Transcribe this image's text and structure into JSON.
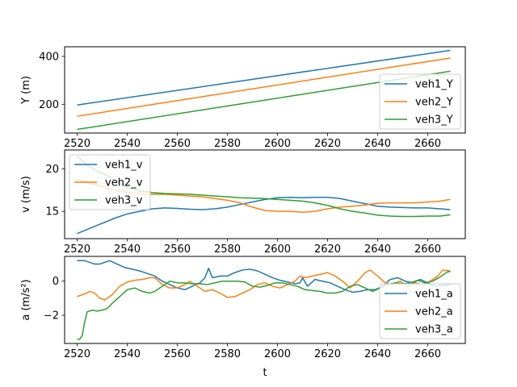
{
  "colors": {
    "blue": "#1f77b4",
    "orange": "#ff7f0e",
    "green": "#2ca02c"
  },
  "chart_data": [
    {
      "type": "line",
      "xlabel": "",
      "ylabel": "Y (m)",
      "xlim": [
        2515,
        2675
      ],
      "ylim": [
        80,
        440
      ],
      "xticks": [
        2520,
        2540,
        2560,
        2580,
        2600,
        2620,
        2640,
        2660
      ],
      "yticks": [
        200,
        400
      ],
      "legend_position": "lower-right",
      "series": [
        {
          "name": "veh1_Y",
          "color": "blue",
          "x": [
            2520,
            2669
          ],
          "y": [
            197,
            425
          ]
        },
        {
          "name": "veh2_Y",
          "color": "orange",
          "x": [
            2520,
            2669
          ],
          "y": [
            150,
            393
          ]
        },
        {
          "name": "veh3_Y",
          "color": "green",
          "x": [
            2520,
            2669
          ],
          "y": [
            95,
            338
          ]
        }
      ]
    },
    {
      "type": "line",
      "xlabel": "",
      "ylabel": "v (m/s)",
      "xlim": [
        2515,
        2675
      ],
      "ylim": [
        11.8,
        22.2
      ],
      "xticks": [
        2520,
        2540,
        2560,
        2580,
        2600,
        2620,
        2640,
        2660
      ],
      "yticks": [
        15,
        20
      ],
      "legend_position": "upper-left",
      "series": [
        {
          "name": "veh1_v",
          "color": "blue",
          "x": [
            2520,
            2525,
            2530,
            2535,
            2540,
            2545,
            2550,
            2555,
            2560,
            2565,
            2570,
            2575,
            2580,
            2585,
            2590,
            2595,
            2600,
            2605,
            2610,
            2615,
            2620,
            2625,
            2630,
            2635,
            2640,
            2645,
            2650,
            2655,
            2660,
            2665,
            2669
          ],
          "y": [
            12.4,
            13.0,
            13.6,
            14.2,
            14.7,
            15.0,
            15.3,
            15.4,
            15.35,
            15.25,
            15.2,
            15.3,
            15.5,
            15.8,
            16.1,
            16.4,
            16.6,
            16.65,
            16.6,
            16.65,
            16.65,
            16.5,
            16.2,
            15.9,
            15.6,
            15.5,
            15.45,
            15.4,
            15.4,
            15.3,
            15.2
          ]
        },
        {
          "name": "veh2_v",
          "color": "orange",
          "x": [
            2520,
            2525,
            2530,
            2535,
            2540,
            2545,
            2550,
            2555,
            2560,
            2565,
            2570,
            2575,
            2580,
            2585,
            2590,
            2595,
            2600,
            2605,
            2610,
            2615,
            2620,
            2625,
            2630,
            2635,
            2640,
            2645,
            2650,
            2655,
            2660,
            2665,
            2669
          ],
          "y": [
            18.7,
            18.3,
            17.9,
            17.5,
            17.2,
            17.05,
            17.0,
            17.0,
            16.9,
            16.8,
            16.7,
            16.5,
            16.3,
            16.0,
            15.5,
            15.1,
            15.0,
            15.0,
            14.9,
            15.0,
            15.3,
            15.5,
            15.6,
            15.75,
            15.95,
            16.0,
            16.0,
            16.0,
            16.1,
            16.2,
            16.4
          ]
        },
        {
          "name": "veh3_v",
          "color": "green",
          "x": [
            2520,
            2524,
            2528,
            2532,
            2536,
            2540,
            2545,
            2550,
            2555,
            2560,
            2565,
            2570,
            2575,
            2580,
            2585,
            2590,
            2595,
            2600,
            2605,
            2610,
            2615,
            2620,
            2625,
            2630,
            2635,
            2640,
            2645,
            2650,
            2655,
            2660,
            2665,
            2669
          ],
          "y": [
            21.5,
            20.4,
            19.7,
            19.2,
            18.5,
            17.8,
            17.4,
            17.2,
            17.1,
            17.05,
            17.0,
            16.9,
            16.8,
            16.7,
            16.6,
            16.55,
            16.5,
            16.4,
            16.3,
            16.2,
            16.0,
            15.7,
            15.3,
            15.0,
            14.8,
            14.55,
            14.45,
            14.4,
            14.4,
            14.45,
            14.45,
            14.6
          ]
        }
      ]
    },
    {
      "type": "line",
      "xlabel": "t",
      "ylabel": "a (m/s²)",
      "xlim": [
        2515,
        2675
      ],
      "ylim": [
        -3.65,
        1.45
      ],
      "xticks": [
        2520,
        2540,
        2560,
        2580,
        2600,
        2620,
        2640,
        2660
      ],
      "yticks": [
        -2,
        0
      ],
      "legend_position": "lower-right",
      "series": [
        {
          "name": "veh1_a",
          "color": "blue",
          "x": [
            2520,
            2523,
            2525,
            2527,
            2529,
            2531,
            2533,
            2536,
            2539,
            2542,
            2545,
            2548,
            2551,
            2554,
            2557,
            2560,
            2563,
            2566,
            2569,
            2571,
            2572.5,
            2574,
            2577,
            2580,
            2583,
            2586,
            2589,
            2592,
            2595,
            2598,
            2601,
            2604,
            2607,
            2609,
            2610,
            2612,
            2615,
            2618,
            2621,
            2624,
            2627,
            2630,
            2633,
            2636,
            2639,
            2642,
            2645,
            2648,
            2651,
            2654,
            2657,
            2660,
            2663,
            2666,
            2669
          ],
          "y": [
            1.2,
            1.2,
            1.1,
            1.0,
            1.0,
            1.1,
            1.2,
            1.0,
            0.8,
            0.7,
            0.6,
            0.45,
            0.3,
            0.0,
            -0.2,
            -0.4,
            -0.5,
            -0.3,
            -0.1,
            0.2,
            0.75,
            0.2,
            0.3,
            0.3,
            0.5,
            0.65,
            0.7,
            0.6,
            0.4,
            0.2,
            0.05,
            -0.05,
            -0.15,
            -0.1,
            0.2,
            -0.3,
            0.1,
            0.0,
            -0.1,
            -0.3,
            -0.5,
            -0.65,
            -0.6,
            -0.5,
            -0.5,
            -0.3,
            0.1,
            0.2,
            0.0,
            -0.1,
            0.1,
            -0.1,
            -0.3,
            -0.25,
            -0.2
          ]
        },
        {
          "name": "veh2_a",
          "color": "orange",
          "x": [
            2520,
            2523,
            2525,
            2527,
            2529,
            2531,
            2534,
            2537,
            2540,
            2543,
            2546,
            2549,
            2551,
            2554,
            2557,
            2560,
            2563,
            2565,
            2568,
            2571,
            2574,
            2577,
            2580,
            2583,
            2586,
            2589,
            2592,
            2595,
            2598,
            2601,
            2604,
            2607,
            2609,
            2611,
            2614,
            2617,
            2620,
            2623,
            2626,
            2629,
            2632,
            2635,
            2637,
            2640,
            2643,
            2646,
            2649,
            2652,
            2655,
            2658,
            2661,
            2664,
            2666,
            2669
          ],
          "y": [
            -0.9,
            -0.75,
            -0.6,
            -0.7,
            -1.0,
            -1.1,
            -0.8,
            -0.3,
            -0.05,
            0.05,
            0.1,
            0.2,
            0.2,
            -0.2,
            -0.4,
            -0.4,
            -0.2,
            0.0,
            -0.3,
            -0.6,
            -0.5,
            -0.7,
            -0.95,
            -0.9,
            -0.7,
            -0.5,
            -0.2,
            -0.1,
            -0.3,
            -0.4,
            -0.2,
            0.0,
            0.3,
            0.2,
            0.3,
            0.4,
            0.5,
            0.3,
            0.0,
            -0.4,
            0.0,
            0.5,
            0.65,
            0.3,
            -0.1,
            -0.2,
            0.0,
            -0.3,
            -0.1,
            -0.2,
            0.0,
            0.3,
            0.65,
            0.6
          ]
        },
        {
          "name": "veh3_a",
          "color": "green",
          "x": [
            2520,
            2521,
            2522,
            2523,
            2524,
            2526,
            2528,
            2530,
            2532,
            2534,
            2537,
            2540,
            2543,
            2546,
            2549,
            2551,
            2554,
            2557,
            2560,
            2563,
            2566,
            2569,
            2572,
            2575,
            2578,
            2581,
            2584,
            2587,
            2590,
            2593,
            2596,
            2599,
            2602,
            2605,
            2608,
            2611,
            2614,
            2617,
            2620,
            2623,
            2626,
            2629,
            2632,
            2635,
            2638,
            2641,
            2644,
            2647,
            2650,
            2653,
            2656,
            2659,
            2662,
            2665,
            2668,
            2669
          ],
          "y": [
            -3.4,
            -3.4,
            -3.2,
            -2.4,
            -1.8,
            -1.7,
            -1.75,
            -1.7,
            -1.6,
            -1.3,
            -0.9,
            -0.5,
            -0.4,
            -0.6,
            -0.7,
            -0.6,
            -0.3,
            0.0,
            -0.1,
            -0.1,
            -0.15,
            -0.15,
            -0.2,
            -0.1,
            0.0,
            0.0,
            0.0,
            -0.05,
            -0.3,
            -0.35,
            -0.25,
            -0.1,
            -0.1,
            -0.2,
            -0.3,
            -0.5,
            -0.55,
            -0.6,
            -0.7,
            -0.7,
            -0.6,
            -0.3,
            -0.2,
            -0.4,
            -0.6,
            -0.4,
            -0.2,
            -0.1,
            -0.15,
            -0.1,
            0.05,
            -0.1,
            0.0,
            0.25,
            0.55,
            0.55
          ]
        }
      ]
    }
  ]
}
